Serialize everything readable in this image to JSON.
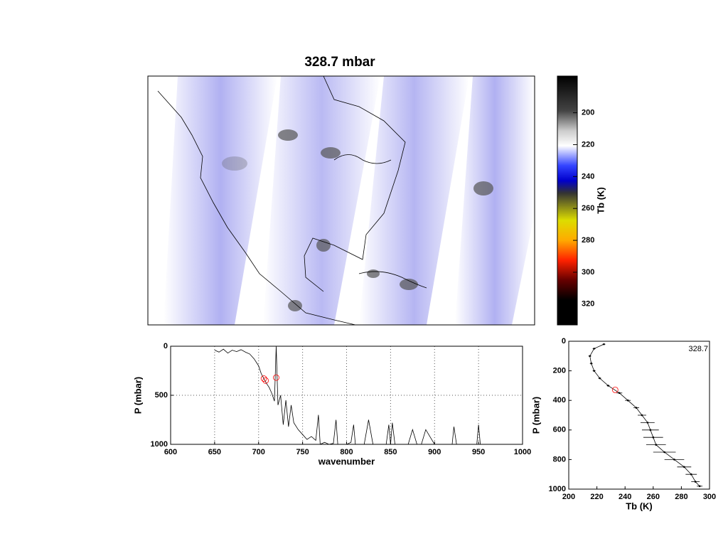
{
  "chart_data": [
    {
      "type": "colormap",
      "title": "328.7 mbar",
      "colorbar_label": "Tb (K)",
      "clim": [
        177,
        333
      ],
      "cticks": [
        200,
        220,
        240,
        260,
        280,
        300,
        320
      ]
    },
    {
      "type": "line",
      "xlabel": "wavenumber",
      "ylabel": "P (mbar)",
      "xlim": [
        600,
        1000
      ],
      "xticks": [
        600,
        650,
        700,
        750,
        800,
        850,
        900,
        950,
        1000
      ],
      "ylim": [
        0,
        1000
      ],
      "yticks": [
        0,
        500,
        1000
      ],
      "y_reversed": true,
      "grid": true,
      "series": [
        {
          "color": "#000000",
          "x": [
            650,
            655,
            660,
            665,
            670,
            675,
            680,
            685,
            690,
            695,
            700,
            703,
            706,
            709,
            712,
            715,
            718,
            720,
            722,
            725,
            728,
            731,
            734,
            737,
            740,
            745,
            750,
            755,
            760,
            765,
            768,
            770,
            775,
            780,
            785,
            788,
            790,
            795,
            800,
            805,
            808,
            810,
            815,
            820,
            825,
            830,
            835,
            840,
            845,
            848,
            850,
            852,
            855,
            860,
            865,
            870,
            875,
            880,
            885,
            890,
            900,
            920,
            922,
            925,
            948,
            950,
            952,
            1000
          ],
          "values": [
            40,
            60,
            30,
            70,
            40,
            55,
            35,
            60,
            80,
            130,
            200,
            280,
            330,
            380,
            420,
            480,
            560,
            0,
            600,
            500,
            800,
            550,
            820,
            600,
            780,
            850,
            900,
            950,
            920,
            960,
            700,
            1000,
            980,
            1000,
            990,
            750,
            1000,
            1000,
            1000,
            980,
            800,
            1000,
            1000,
            1000,
            750,
            1000,
            1000,
            1000,
            1000,
            800,
            1000,
            780,
            1000,
            1000,
            1000,
            1000,
            850,
            1000,
            1000,
            850,
            1000,
            1000,
            820,
            1000,
            1000,
            800,
            1000,
            1000
          ]
        }
      ],
      "highlight": {
        "color": "#ff0000",
        "x": [
          706,
          708,
          720
        ],
        "values": [
          330,
          350,
          320
        ]
      }
    },
    {
      "type": "errorbar",
      "xlabel": "Tb (K)",
      "ylabel": "P (mbar)",
      "annotation": "328.7",
      "xlim": [
        200,
        300
      ],
      "xticks": [
        200,
        220,
        240,
        260,
        280,
        300
      ],
      "ylim": [
        0,
        1000
      ],
      "yticks": [
        0,
        200,
        400,
        600,
        800,
        1000
      ],
      "y_reversed": true,
      "grid": false,
      "series": [
        {
          "color": "#000000",
          "x": [
            225,
            218,
            215,
            216,
            218,
            222,
            228,
            236,
            242,
            248,
            252,
            256,
            258,
            260,
            262,
            268,
            275,
            282,
            287,
            290,
            293
          ],
          "values": [
            20,
            50,
            100,
            150,
            200,
            250,
            300,
            350,
            400,
            450,
            500,
            550,
            600,
            650,
            700,
            750,
            800,
            850,
            900,
            950,
            980
          ],
          "errors": [
            1,
            1,
            1,
            1,
            1,
            1,
            1,
            2,
            2,
            2,
            3,
            5,
            6,
            7,
            7,
            8,
            7,
            5,
            4,
            3,
            2
          ]
        }
      ],
      "highlight": {
        "color": "#ff0000",
        "x": [
          233
        ],
        "values": [
          328.7
        ]
      }
    }
  ]
}
